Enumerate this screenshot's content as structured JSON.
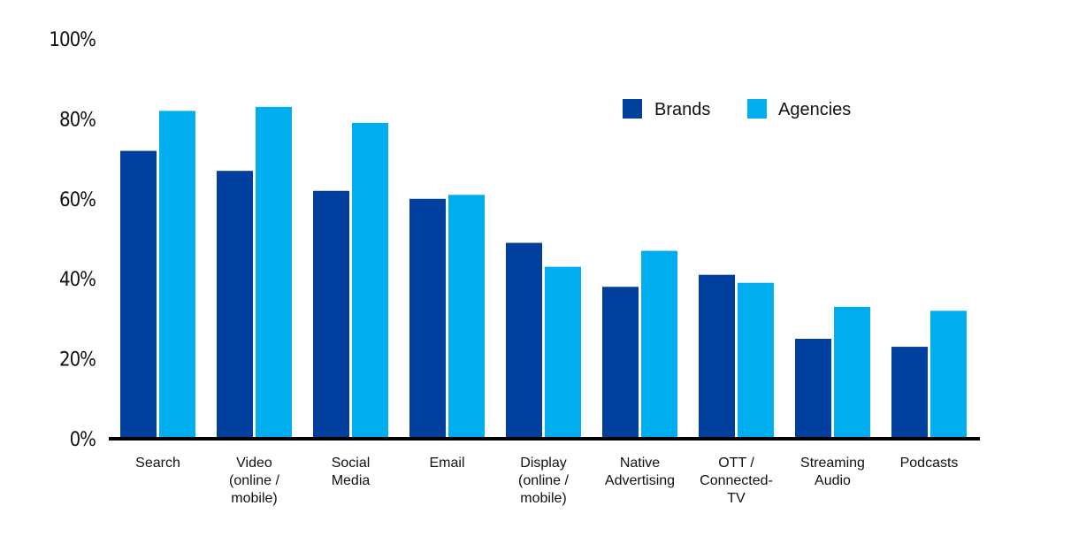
{
  "chart_data": {
    "type": "bar",
    "title": "",
    "xlabel": "",
    "ylabel": "",
    "ylim": [
      0,
      100
    ],
    "yticks": [
      "0%",
      "20%",
      "40%",
      "60%",
      "80%",
      "100%"
    ],
    "ytick_values": [
      0,
      20,
      40,
      60,
      80,
      100
    ],
    "grid": false,
    "legend_position": "top-right",
    "categories": [
      [
        "Search"
      ],
      [
        "Video",
        "(online /",
        "mobile)"
      ],
      [
        "Social",
        "Media"
      ],
      [
        "Email"
      ],
      [
        "Display",
        "(online /",
        "mobile)"
      ],
      [
        "Native",
        "Advertising"
      ],
      [
        "OTT /",
        "Connected-",
        "TV"
      ],
      [
        "Streaming",
        "Audio"
      ],
      [
        "Podcasts"
      ]
    ],
    "series": [
      {
        "name": "Brands",
        "color": "#003f9e",
        "values": [
          72,
          67,
          62,
          60,
          49,
          38,
          41,
          25,
          23
        ]
      },
      {
        "name": "Agencies",
        "color": "#00aeef",
        "values": [
          82,
          83,
          79,
          61,
          43,
          47,
          39,
          33,
          32
        ]
      }
    ]
  }
}
